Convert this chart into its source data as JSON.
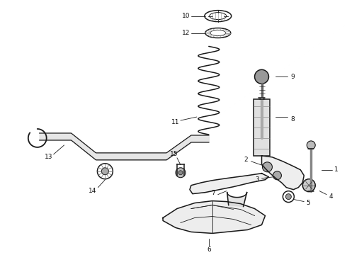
{
  "bg_color": "#ffffff",
  "line_color": "#1a1a1a",
  "figsize": [
    4.9,
    3.6
  ],
  "dpi": 100,
  "font_size": 6.5
}
